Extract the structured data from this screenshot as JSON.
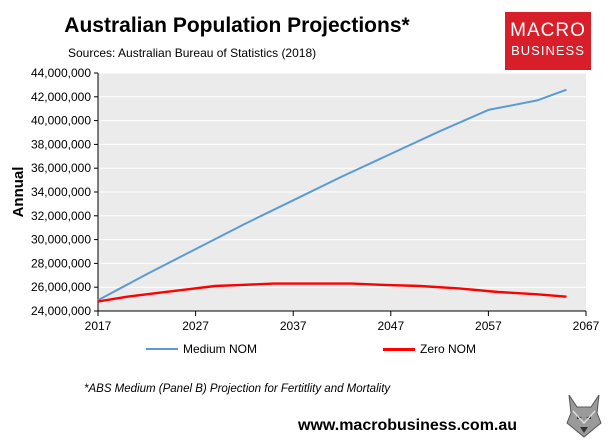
{
  "header": {
    "title": "Australian Population Projections*",
    "subtitle": "Sources: Australian Bureau of Statistics (2018)"
  },
  "logo": {
    "line1": "MACRO",
    "line2": "BUSINESS"
  },
  "chart_data": {
    "type": "line",
    "title": "Australian Population Projections*",
    "subtitle": "Sources: Australian Bureau of Statistics (2018)",
    "xlabel": "",
    "ylabel": "Annual",
    "xlim": [
      2017,
      2067
    ],
    "ylim": [
      24000000,
      44000000
    ],
    "xticks": [
      2017,
      2027,
      2037,
      2047,
      2057,
      2067
    ],
    "yticks": [
      24000000,
      26000000,
      28000000,
      30000000,
      32000000,
      34000000,
      36000000,
      38000000,
      40000000,
      42000000,
      44000000
    ],
    "ytick_labels": [
      "24,000,000",
      "26,000,000",
      "28,000,000",
      "30,000,000",
      "32,000,000",
      "34,000,000",
      "36,000,000",
      "38,000,000",
      "40,000,000",
      "42,000,000",
      "44,000,000"
    ],
    "grid": "horizontal",
    "legend_position": "bottom",
    "series": [
      {
        "name": "Medium NOM",
        "color": "#5b9bd5",
        "x": [
          2017,
          2022,
          2027,
          2032,
          2037,
          2042,
          2047,
          2052,
          2057,
          2062,
          2065
        ],
        "values": [
          24900000,
          27100000,
          29200000,
          31300000,
          33300000,
          35300000,
          37200000,
          39100000,
          40900000,
          41700000,
          42600000
        ]
      },
      {
        "name": "Zero NOM",
        "color": "#ff0000",
        "x": [
          2017,
          2020,
          2023,
          2026,
          2029,
          2032,
          2035,
          2040,
          2043,
          2046,
          2050,
          2054,
          2058,
          2062,
          2065
        ],
        "values": [
          24800000,
          25200000,
          25500000,
          25800000,
          26100000,
          26200000,
          26300000,
          26300000,
          26300000,
          26200000,
          26100000,
          25900000,
          25600000,
          25400000,
          25200000
        ]
      }
    ]
  },
  "footnote": "*ABS Medium (Panel B) Projection for Fertitlity and Mortality",
  "website": "www.macrobusiness.com.au",
  "mascot_icon": "wolf-icon"
}
